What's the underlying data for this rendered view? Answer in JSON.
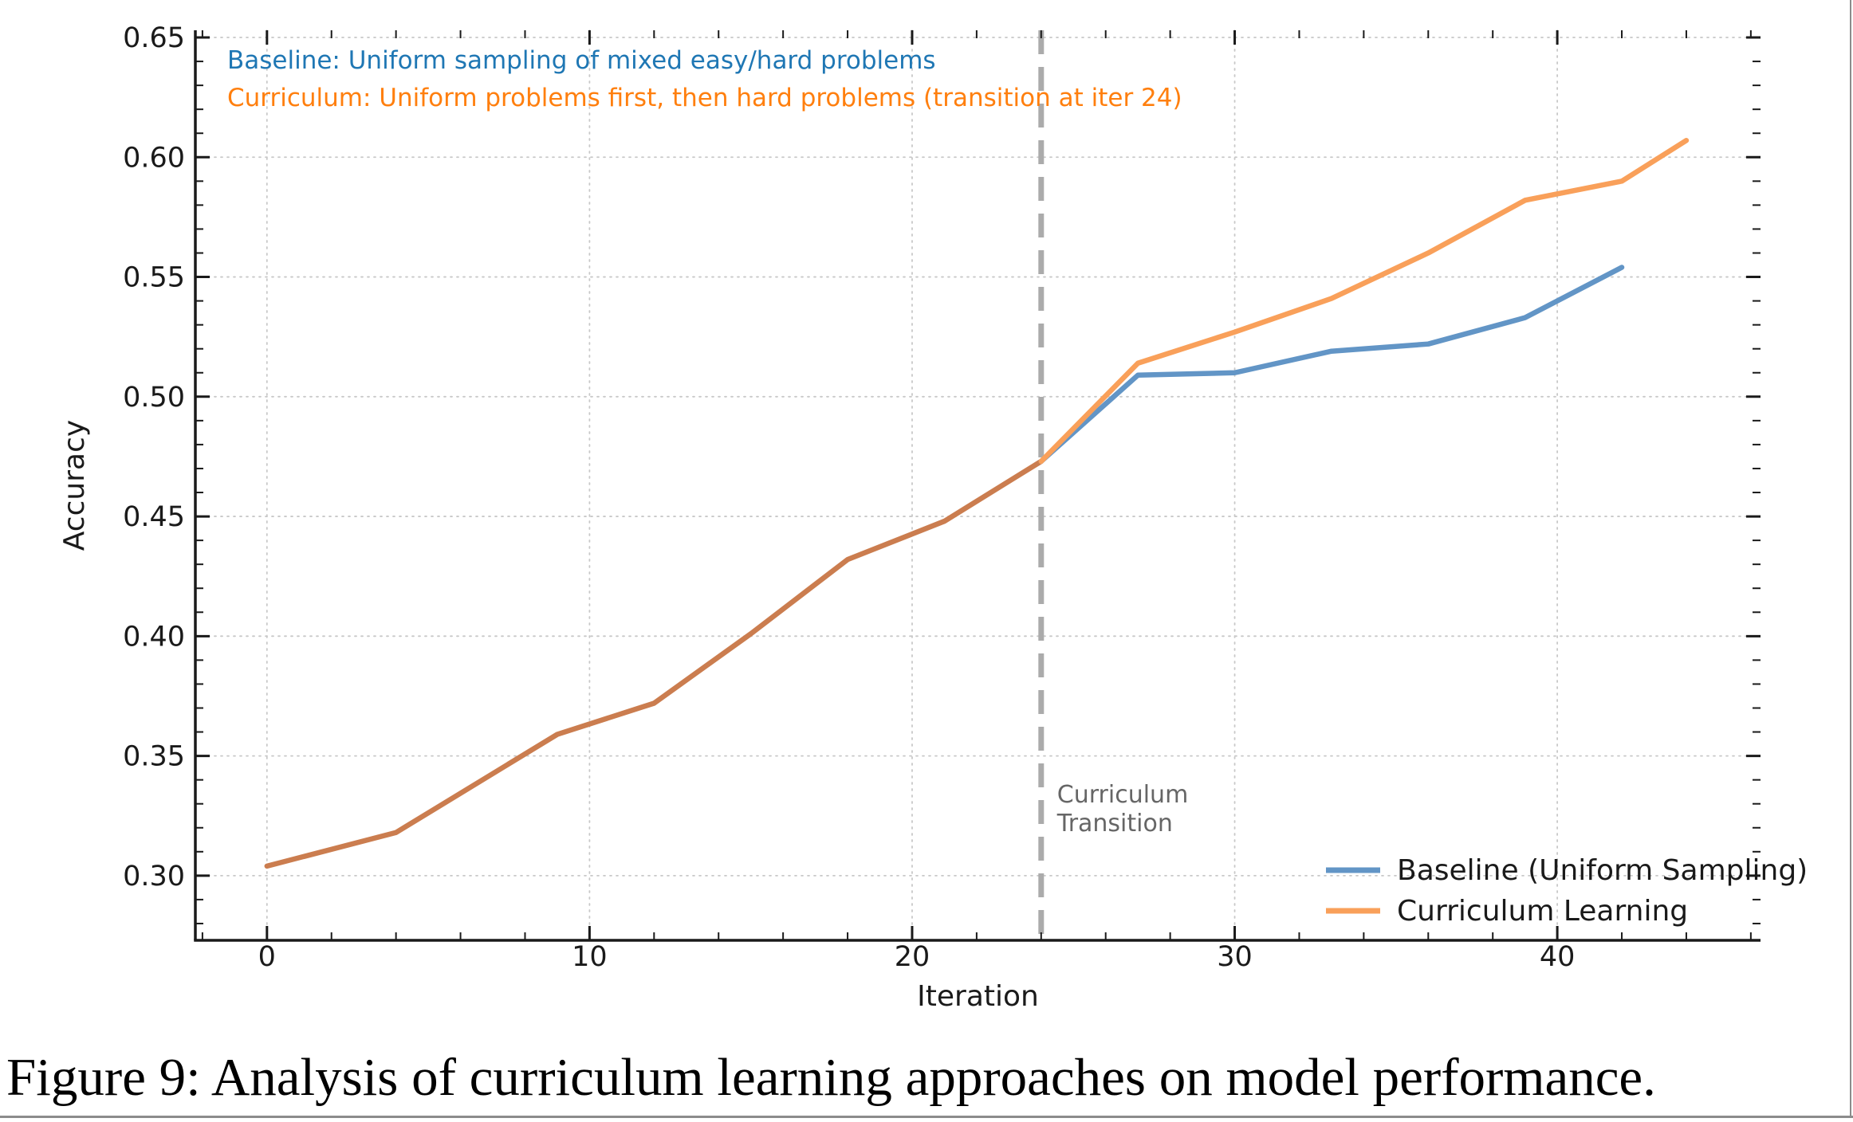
{
  "caption": "Figure 9: Analysis of curriculum learning approaches on model performance.",
  "chart_data": {
    "type": "line",
    "xlabel": "Iteration",
    "ylabel": "Accuracy",
    "xlim": [
      -2.22,
      46.3
    ],
    "ylim": [
      0.273,
      0.653
    ],
    "grid": true,
    "x_major_ticks": [
      0,
      10,
      20,
      30,
      40
    ],
    "x_tick_labels": [
      "0",
      "10",
      "20",
      "30",
      "40"
    ],
    "x_minor_step": 2,
    "y_major_ticks": [
      0.3,
      0.35,
      0.4,
      0.45,
      0.5,
      0.55,
      0.6,
      0.65
    ],
    "y_tick_labels": [
      "0.30",
      "0.35",
      "0.40",
      "0.45",
      "0.50",
      "0.55",
      "0.60",
      "0.65"
    ],
    "y_minor_step": 0.01,
    "series": [
      {
        "name": "Baseline (Uniform Sampling)",
        "color": "#6295C6",
        "x": [
          0,
          4,
          9,
          12,
          15,
          18,
          21,
          24,
          27,
          30,
          33,
          36,
          39,
          42
        ],
        "y": [
          0.304,
          0.318,
          0.359,
          0.372,
          0.401,
          0.432,
          0.448,
          0.473,
          0.509,
          0.51,
          0.519,
          0.522,
          0.533,
          0.554
        ]
      },
      {
        "name": "Curriculum Learning",
        "color": "#F9A05A",
        "x": [
          0,
          4,
          9,
          12,
          15,
          18,
          21,
          24,
          27,
          30,
          33,
          36,
          39,
          42,
          44
        ],
        "y": [
          0.304,
          0.318,
          0.359,
          0.372,
          0.401,
          0.432,
          0.448,
          0.473,
          0.514,
          0.527,
          0.541,
          0.56,
          0.582,
          0.59,
          0.607
        ]
      }
    ],
    "overlap_color": "#CB7D4F",
    "divergence_x": 24,
    "vline": {
      "x": 24,
      "color": "#ABABAB",
      "label_lines": [
        "Curriculum",
        "Transition"
      ],
      "label_color": "#666666"
    },
    "annotations": [
      {
        "text": "Baseline: Uniform sampling of mixed easy/hard problems",
        "color": "#1F77B4"
      },
      {
        "text": "Curriculum: Uniform problems first, then hard problems (transition at iter 24)",
        "color": "#FF7F0E"
      }
    ],
    "legend": {
      "position": "lower right",
      "entries": [
        "Baseline (Uniform Sampling)",
        "Curriculum Learning"
      ]
    }
  }
}
